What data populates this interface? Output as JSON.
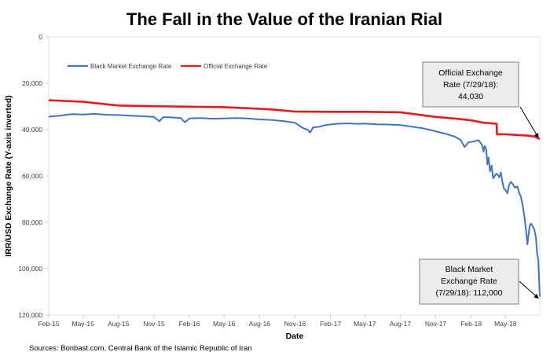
{
  "chart_data": {
    "type": "line",
    "title": "The Fall in the Value of the Iranian Rial",
    "xlabel": "Date",
    "ylabel": "IRR/USD Exchange  Rate (Y-axis inverted)",
    "y_inverted": true,
    "ylim": [
      0,
      120000
    ],
    "y_ticks": [
      "0",
      "20,000",
      "40,000",
      "60,000",
      "80,000",
      "100,000",
      "120,000"
    ],
    "y_tick_values": [
      0,
      20000,
      40000,
      60000,
      80000,
      100000,
      120000
    ],
    "x_ticks": [
      "Feb-15",
      "May-15",
      "Aug-15",
      "Nov-15",
      "Feb-16",
      "May-16",
      "Aug-16",
      "Nov-16",
      "Feb-17",
      "May-17",
      "Aug-17",
      "Nov-17",
      "Feb-18",
      "May-18"
    ],
    "x_tick_values": [
      "2015-02-01",
      "2015-05-01",
      "2015-08-01",
      "2015-11-01",
      "2016-02-01",
      "2016-05-01",
      "2016-08-01",
      "2016-11-01",
      "2017-02-01",
      "2017-05-01",
      "2017-08-01",
      "2017-11-01",
      "2018-02-01",
      "2018-05-01"
    ],
    "xlim": [
      "2015-02-01",
      "2018-07-29"
    ],
    "grid": false,
    "legend_position": "top-left",
    "series": [
      {
        "name": "Black Market Exchange Rate",
        "color": "#4472C4",
        "points": [
          [
            "2015-02-01",
            34400
          ],
          [
            "2015-03-01",
            34000
          ],
          [
            "2015-04-01",
            33300
          ],
          [
            "2015-05-01",
            33500
          ],
          [
            "2015-06-01",
            33200
          ],
          [
            "2015-07-01",
            33600
          ],
          [
            "2015-08-01",
            33700
          ],
          [
            "2015-09-01",
            34000
          ],
          [
            "2015-10-01",
            34200
          ],
          [
            "2015-11-01",
            34500
          ],
          [
            "2015-11-15",
            36400
          ],
          [
            "2015-11-25",
            34600
          ],
          [
            "2015-12-15",
            34700
          ],
          [
            "2016-01-10",
            35000
          ],
          [
            "2016-01-20",
            36800
          ],
          [
            "2016-02-01",
            35200
          ],
          [
            "2016-03-01",
            35000
          ],
          [
            "2016-04-01",
            35300
          ],
          [
            "2016-05-01",
            35200
          ],
          [
            "2016-06-01",
            35000
          ],
          [
            "2016-07-01",
            35200
          ],
          [
            "2016-08-01",
            35600
          ],
          [
            "2016-09-01",
            35800
          ],
          [
            "2016-10-01",
            36300
          ],
          [
            "2016-11-01",
            37000
          ],
          [
            "2016-11-20",
            39200
          ],
          [
            "2016-12-05",
            40200
          ],
          [
            "2016-12-10",
            41300
          ],
          [
            "2016-12-18",
            39000
          ],
          [
            "2017-01-01",
            38800
          ],
          [
            "2017-01-20",
            38000
          ],
          [
            "2017-02-15",
            37500
          ],
          [
            "2017-03-15",
            37300
          ],
          [
            "2017-04-15",
            37500
          ],
          [
            "2017-05-01",
            37400
          ],
          [
            "2017-06-01",
            37700
          ],
          [
            "2017-07-01",
            37800
          ],
          [
            "2017-08-01",
            38000
          ],
          [
            "2017-09-01",
            38700
          ],
          [
            "2017-10-01",
            39500
          ],
          [
            "2017-11-01",
            40700
          ],
          [
            "2017-12-01",
            42000
          ],
          [
            "2017-12-20",
            43000
          ],
          [
            "2018-01-05",
            44500
          ],
          [
            "2018-01-15",
            47500
          ],
          [
            "2018-01-25",
            45500
          ],
          [
            "2018-02-10",
            45000
          ],
          [
            "2018-02-20",
            44500
          ],
          [
            "2018-03-01",
            46500
          ],
          [
            "2018-03-05",
            49500
          ],
          [
            "2018-03-08",
            47000
          ],
          [
            "2018-03-12",
            48500
          ],
          [
            "2018-03-15",
            55000
          ],
          [
            "2018-03-18",
            52000
          ],
          [
            "2018-03-22",
            58000
          ],
          [
            "2018-03-26",
            55500
          ],
          [
            "2018-03-30",
            61000
          ],
          [
            "2018-04-03",
            60000
          ],
          [
            "2018-04-07",
            59000
          ],
          [
            "2018-04-11",
            59500
          ],
          [
            "2018-04-15",
            60500
          ],
          [
            "2018-04-19",
            58500
          ],
          [
            "2018-04-23",
            62500
          ],
          [
            "2018-04-27",
            65500
          ],
          [
            "2018-05-01",
            66000
          ],
          [
            "2018-05-06",
            67500
          ],
          [
            "2018-05-10",
            64000
          ],
          [
            "2018-05-15",
            62500
          ],
          [
            "2018-05-20",
            63500
          ],
          [
            "2018-05-25",
            65000
          ],
          [
            "2018-06-01",
            64500
          ],
          [
            "2018-06-05",
            67000
          ],
          [
            "2018-06-10",
            69000
          ],
          [
            "2018-06-15",
            73000
          ],
          [
            "2018-06-20",
            78500
          ],
          [
            "2018-06-24",
            84500
          ],
          [
            "2018-06-27",
            89500
          ],
          [
            "2018-06-30",
            85000
          ],
          [
            "2018-07-03",
            81500
          ],
          [
            "2018-07-06",
            80500
          ],
          [
            "2018-07-10",
            81500
          ],
          [
            "2018-07-15",
            83000
          ],
          [
            "2018-07-19",
            86500
          ],
          [
            "2018-07-22",
            93500
          ],
          [
            "2018-07-25",
            96000
          ],
          [
            "2018-07-28",
            108000
          ],
          [
            "2018-07-29",
            112000
          ]
        ]
      },
      {
        "name": "Official Exchange Rate",
        "color": "#E8191C",
        "points": [
          [
            "2015-02-01",
            27300
          ],
          [
            "2015-05-01",
            28000
          ],
          [
            "2015-08-01",
            29600
          ],
          [
            "2015-11-01",
            29900
          ],
          [
            "2016-02-01",
            30100
          ],
          [
            "2016-05-01",
            30300
          ],
          [
            "2016-08-01",
            31000
          ],
          [
            "2016-09-01",
            31300
          ],
          [
            "2016-11-01",
            32200
          ],
          [
            "2017-02-01",
            32300
          ],
          [
            "2017-05-01",
            32300
          ],
          [
            "2017-08-01",
            32500
          ],
          [
            "2017-11-01",
            34500
          ],
          [
            "2018-01-01",
            35400
          ],
          [
            "2018-02-01",
            36000
          ],
          [
            "2018-03-01",
            36900
          ],
          [
            "2018-04-08",
            37500
          ],
          [
            "2018-04-09",
            42000
          ],
          [
            "2018-05-01",
            42000
          ],
          [
            "2018-06-01",
            42300
          ],
          [
            "2018-07-01",
            42600
          ],
          [
            "2018-07-15",
            43000
          ],
          [
            "2018-07-29",
            44030
          ]
        ]
      }
    ],
    "annotations": [
      {
        "lines": [
          "Official Exchange",
          "Rate (7/29/18):",
          "44,030"
        ],
        "target": [
          "2018-07-29",
          44030
        ]
      },
      {
        "lines": [
          "Black Market",
          "Exchange Rate",
          "(7/29/18): 112,000"
        ],
        "target": [
          "2018-07-29",
          112000
        ]
      }
    ]
  },
  "source_note": "Sources: Bonbast.com, Central Bank of the Islamic Republic of Iran"
}
